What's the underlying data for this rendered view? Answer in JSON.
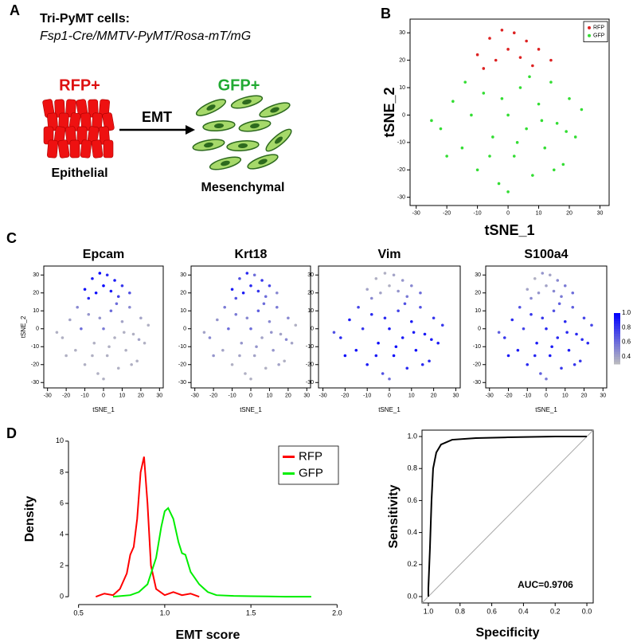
{
  "panel_labels": [
    "A",
    "B",
    "C",
    "D"
  ],
  "diagram": {
    "title": "Tri-PyMT cells:",
    "genotype": "Fsp1-Cre/MMTV-PyMT/Rosa-mT/mG",
    "left_label": "RFP+",
    "left_caption": "Epithelial",
    "arrow_label": "EMT",
    "right_label": "GFP+",
    "right_caption": "Mesenchymal"
  },
  "chart_data": [
    {
      "type": "scatter",
      "xlabel": "tSNE_1",
      "ylabel": "tSNE_2",
      "xlim": [
        -32,
        33
      ],
      "ylim": [
        -33,
        35
      ],
      "xticks": [
        -30,
        -20,
        -10,
        0,
        10,
        20,
        30
      ],
      "yticks": [
        -30,
        -20,
        -10,
        0,
        10,
        20,
        30
      ],
      "legend": "top-right",
      "series": [
        {
          "name": "RFP",
          "color": "#dd2222",
          "x": [
            -10,
            -6,
            -2,
            2,
            6,
            10,
            14,
            -4,
            0,
            4,
            8,
            -8
          ],
          "values": [
            22,
            28,
            31,
            30,
            27,
            24,
            20,
            20,
            24,
            21,
            18,
            17
          ]
        },
        {
          "name": "GFP",
          "color": "#33dd33",
          "x": [
            -22,
            -18,
            -15,
            -12,
            -10,
            -8,
            -5,
            -3,
            0,
            2,
            4,
            6,
            8,
            10,
            12,
            14,
            16,
            18,
            20,
            22,
            -20,
            -14,
            -6,
            0,
            3,
            7,
            11,
            15,
            19,
            24,
            -25,
            -2
          ],
          "values": [
            -5,
            5,
            -12,
            0,
            -20,
            8,
            -8,
            -25,
            0,
            -15,
            10,
            -5,
            -22,
            4,
            -12,
            12,
            -3,
            -18,
            6,
            -8,
            -15,
            12,
            -15,
            -28,
            -10,
            14,
            -2,
            -20,
            -6,
            2,
            -2,
            6
          ]
        }
      ]
    },
    {
      "type": "feature",
      "title": "Epcam",
      "xlabel": "tSNE_1",
      "ylabel": "tSNE_2",
      "xlim": [
        -32,
        32
      ],
      "ylim": [
        -33,
        35
      ],
      "xticks": [
        -30,
        -20,
        -10,
        0,
        10,
        20,
        30
      ],
      "yticks": [
        -30,
        -20,
        -10,
        0,
        10,
        20,
        30
      ],
      "x": [
        -10,
        -6,
        -2,
        2,
        6,
        10,
        14,
        -4,
        0,
        4,
        8,
        -8,
        -22,
        -18,
        -15,
        -12,
        -10,
        -8,
        -5,
        -3,
        0,
        2,
        4,
        6,
        8,
        10,
        12,
        14,
        16,
        18,
        20,
        22,
        -20,
        -14,
        -6,
        0,
        3,
        7,
        11,
        15,
        19,
        24,
        -25,
        -2
      ],
      "y": [
        22,
        28,
        31,
        30,
        27,
        24,
        20,
        20,
        24,
        21,
        18,
        17,
        -5,
        5,
        -12,
        0,
        -20,
        8,
        -8,
        -25,
        0,
        -15,
        10,
        -5,
        -22,
        4,
        -12,
        12,
        -3,
        -18,
        6,
        -8,
        -15,
        12,
        -15,
        -28,
        -10,
        14,
        -2,
        -20,
        -6,
        2,
        -2,
        6
      ],
      "values": [
        0.95,
        0.9,
        1.0,
        0.85,
        0.9,
        0.8,
        0.7,
        0.95,
        1.0,
        0.9,
        0.75,
        0.85,
        0.35,
        0.4,
        0.35,
        0.6,
        0.35,
        0.45,
        0.35,
        0.35,
        0.55,
        0.35,
        0.6,
        0.35,
        0.35,
        0.4,
        0.35,
        0.5,
        0.35,
        0.35,
        0.4,
        0.35,
        0.35,
        0.5,
        0.35,
        0.35,
        0.35,
        0.6,
        0.35,
        0.35,
        0.4,
        0.35,
        0.35,
        0.45
      ]
    },
    {
      "type": "feature",
      "title": "Krt18",
      "xlabel": "tSNE_1",
      "xlim": [
        -32,
        32
      ],
      "ylim": [
        -33,
        35
      ],
      "xticks": [
        -30,
        -20,
        -10,
        0,
        10,
        20,
        30
      ],
      "yticks": [
        -30,
        -20,
        -10,
        0,
        10,
        20,
        30
      ],
      "x": [
        -10,
        -6,
        -2,
        2,
        6,
        10,
        14,
        -4,
        0,
        4,
        8,
        -8,
        -22,
        -18,
        -15,
        -12,
        -10,
        -8,
        -5,
        -3,
        0,
        2,
        4,
        6,
        8,
        10,
        12,
        14,
        16,
        18,
        20,
        22,
        -20,
        -14,
        -6,
        0,
        3,
        7,
        11,
        15,
        19,
        24,
        -25,
        -2
      ],
      "y": [
        22,
        28,
        31,
        30,
        27,
        24,
        20,
        20,
        24,
        21,
        18,
        17,
        -5,
        5,
        -12,
        0,
        -20,
        8,
        -8,
        -25,
        0,
        -15,
        10,
        -5,
        -22,
        4,
        -12,
        12,
        -3,
        -18,
        6,
        -8,
        -15,
        12,
        -15,
        -28,
        -10,
        14,
        -2,
        -20,
        -6,
        2,
        -2,
        6
      ],
      "values": [
        0.9,
        0.7,
        0.85,
        0.6,
        0.8,
        0.75,
        0.5,
        0.9,
        0.85,
        0.8,
        0.6,
        0.7,
        0.5,
        0.45,
        0.4,
        0.6,
        0.35,
        0.55,
        0.45,
        0.35,
        0.6,
        0.4,
        0.65,
        0.4,
        0.35,
        0.5,
        0.45,
        0.55,
        0.4,
        0.35,
        0.5,
        0.4,
        0.45,
        0.55,
        0.4,
        0.35,
        0.45,
        0.6,
        0.45,
        0.4,
        0.5,
        0.35,
        0.4,
        0.5
      ]
    },
    {
      "type": "feature",
      "title": "Vim",
      "xlabel": "tSNE_1",
      "xlim": [
        -32,
        32
      ],
      "ylim": [
        -33,
        35
      ],
      "xticks": [
        -30,
        -20,
        -10,
        0,
        10,
        20,
        30
      ],
      "yticks": [
        -30,
        -20,
        -10,
        0,
        10,
        20,
        30
      ],
      "x": [
        -10,
        -6,
        -2,
        2,
        6,
        10,
        14,
        -4,
        0,
        4,
        8,
        -8,
        -22,
        -18,
        -15,
        -12,
        -10,
        -8,
        -5,
        -3,
        0,
        2,
        4,
        6,
        8,
        10,
        12,
        14,
        16,
        18,
        20,
        22,
        -20,
        -14,
        -6,
        0,
        3,
        7,
        11,
        15,
        19,
        24,
        -25,
        -2
      ],
      "y": [
        22,
        28,
        31,
        30,
        27,
        24,
        20,
        20,
        24,
        21,
        18,
        17,
        -5,
        5,
        -12,
        0,
        -20,
        8,
        -8,
        -25,
        0,
        -15,
        10,
        -5,
        -22,
        4,
        -12,
        12,
        -3,
        -18,
        6,
        -8,
        -15,
        12,
        -15,
        -28,
        -10,
        14,
        -2,
        -20,
        -6,
        2,
        -2,
        6
      ],
      "values": [
        0.4,
        0.35,
        0.35,
        0.4,
        0.45,
        0.5,
        0.6,
        0.4,
        0.35,
        0.45,
        0.55,
        0.5,
        0.85,
        0.9,
        0.95,
        0.8,
        0.9,
        0.85,
        0.95,
        0.7,
        0.9,
        0.95,
        0.75,
        0.9,
        0.85,
        0.9,
        0.95,
        0.7,
        0.9,
        0.85,
        0.8,
        0.9,
        0.95,
        0.75,
        0.9,
        0.6,
        0.95,
        0.7,
        0.9,
        0.85,
        0.9,
        0.8,
        0.7,
        0.85
      ]
    },
    {
      "type": "feature",
      "title": "S100a4",
      "xlabel": "tSNE_1",
      "xlim": [
        -32,
        32
      ],
      "ylim": [
        -33,
        35
      ],
      "xticks": [
        -30,
        -20,
        -10,
        0,
        10,
        20,
        30
      ],
      "yticks": [
        -30,
        -20,
        -10,
        0,
        10,
        20,
        30
      ],
      "clim": [
        0.3,
        1
      ],
      "cticks": [
        0.4,
        0.6,
        0.8,
        {
          "value": 1,
          "label": "1.0"
        }
      ],
      "x": [
        -10,
        -6,
        -2,
        2,
        6,
        10,
        14,
        -4,
        0,
        4,
        8,
        -8,
        -22,
        -18,
        -15,
        -12,
        -10,
        -8,
        -5,
        -3,
        0,
        2,
        4,
        6,
        8,
        10,
        12,
        14,
        16,
        18,
        20,
        22,
        -20,
        -14,
        -6,
        0,
        3,
        7,
        11,
        15,
        19,
        24,
        -25,
        -2
      ],
      "y": [
        22,
        28,
        31,
        30,
        27,
        24,
        20,
        20,
        24,
        21,
        18,
        17,
        -5,
        5,
        -12,
        0,
        -20,
        8,
        -8,
        -25,
        0,
        -15,
        10,
        -5,
        -22,
        4,
        -12,
        12,
        -3,
        -18,
        6,
        -8,
        -15,
        12,
        -15,
        -28,
        -10,
        14,
        -2,
        -20,
        -6,
        2,
        -2,
        6
      ],
      "values": [
        0.4,
        0.35,
        0.45,
        0.4,
        0.5,
        0.55,
        0.6,
        0.45,
        0.4,
        0.5,
        0.55,
        0.5,
        0.8,
        0.85,
        0.9,
        0.75,
        0.85,
        0.8,
        0.9,
        0.65,
        0.85,
        0.9,
        0.7,
        0.85,
        0.8,
        0.85,
        0.9,
        0.65,
        0.85,
        0.8,
        0.75,
        0.85,
        0.9,
        0.7,
        0.85,
        0.55,
        0.9,
        0.65,
        0.85,
        0.8,
        0.85,
        0.75,
        0.65,
        0.8
      ]
    },
    {
      "type": "line",
      "xlabel": "EMT score",
      "ylabel": "Density",
      "xlim": [
        0.46,
        2.04
      ],
      "ylim": [
        -0.3,
        10.3
      ],
      "xticks": [
        0.5,
        {
          "value": 1,
          "label": "1.0"
        },
        1.5,
        {
          "value": 2,
          "label": "2.0"
        }
      ],
      "yticks": [
        0,
        2,
        4,
        6,
        8,
        10
      ],
      "legend": "top-right",
      "series": [
        {
          "name": "RFP",
          "color": "#ff0000",
          "x": [
            0.6,
            0.65,
            0.7,
            0.74,
            0.78,
            0.8,
            0.82,
            0.84,
            0.86,
            0.88,
            0.9,
            0.92,
            0.95,
            1.0,
            1.05,
            1.1,
            1.15,
            1.2
          ],
          "values": [
            0,
            0.2,
            0.1,
            0.5,
            1.5,
            2.7,
            3.2,
            5,
            8,
            9,
            6,
            2,
            0.5,
            0.1,
            0.3,
            0.1,
            0.2,
            0
          ]
        },
        {
          "name": "GFP",
          "color": "#00ee00",
          "x": [
            0.7,
            0.8,
            0.85,
            0.9,
            0.95,
            0.98,
            1.0,
            1.02,
            1.05,
            1.08,
            1.1,
            1.12,
            1.15,
            1.2,
            1.25,
            1.3,
            1.4,
            1.5,
            1.6,
            1.7,
            1.85
          ],
          "values": [
            0,
            0.1,
            0.3,
            0.8,
            2.5,
            4.5,
            5.5,
            5.7,
            5,
            3.5,
            2.8,
            2.7,
            1.6,
            0.8,
            0.3,
            0.1,
            0.05,
            0.03,
            0.02,
            0,
            0
          ]
        }
      ]
    },
    {
      "type": "roc",
      "xlabel": "Specificity",
      "ylabel": "Sensitivity",
      "annotation": "AUC=0.9706",
      "xlim": [
        1.04,
        -0.04
      ],
      "ylim": [
        -0.04,
        1.04
      ],
      "xticks": [
        {
          "value": 1,
          "label": "1.0"
        },
        0.8,
        0.6,
        0.4,
        0.2,
        {
          "value": 0,
          "label": "0.0"
        }
      ],
      "yticks": [
        {
          "value": 0,
          "label": "0.0"
        },
        0.2,
        0.4,
        0.6,
        0.8,
        {
          "value": 1,
          "label": "1.0"
        }
      ],
      "color": "#000000",
      "x": [
        1.0,
        1.0,
        0.99,
        0.98,
        0.97,
        0.95,
        0.92,
        0.85,
        0.7,
        0.5,
        0.2,
        0.0
      ],
      "values": [
        0,
        0.05,
        0.3,
        0.6,
        0.8,
        0.9,
        0.95,
        0.98,
        0.99,
        0.995,
        1.0,
        1.0
      ]
    }
  ]
}
